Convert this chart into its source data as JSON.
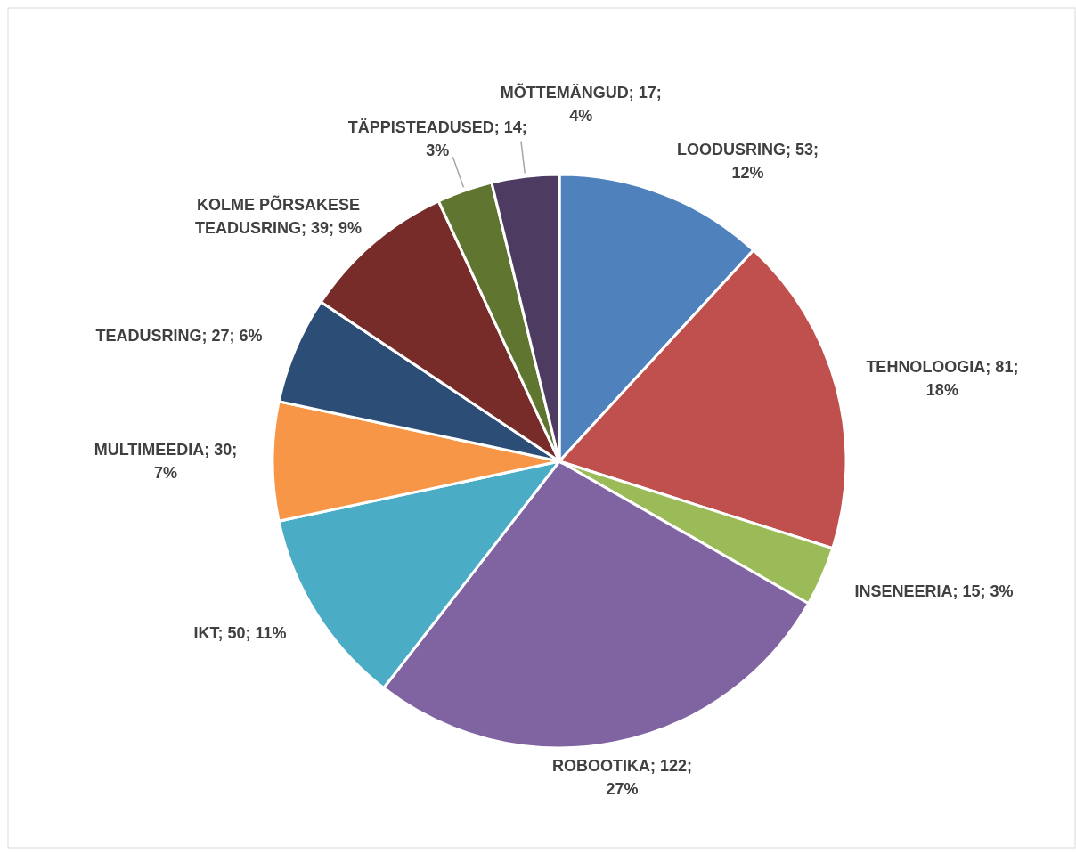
{
  "chart_data": {
    "type": "pie",
    "categories": [
      "LOODUSRING",
      "TEHNOLOOGIA",
      "INSENEERIA",
      "ROBOOTIKA",
      "IKT",
      "MULTIMEEDIA",
      "TEADUSRING",
      "KOLME PÕRSAKESE TEADUSRING",
      "TÄPPISTEADUSED",
      "MÕTTEMÄNGUD"
    ],
    "values": [
      53,
      81,
      15,
      122,
      50,
      30,
      27,
      39,
      14,
      17
    ],
    "value_labels": [
      "53; 12%",
      "81; 18%",
      "15; 3%",
      "122; 27%",
      "50; 11%",
      "30; 7%",
      "27; 6%",
      "39; 9%",
      "14; 3%",
      "17; 4%"
    ],
    "colors": [
      "#4f81bd",
      "#c0504d",
      "#9bbb59",
      "#8064a2",
      "#4bacc6",
      "#f79646",
      "#2c4d75",
      "#772c2a",
      "#5f7530",
      "#4d3b62"
    ]
  }
}
